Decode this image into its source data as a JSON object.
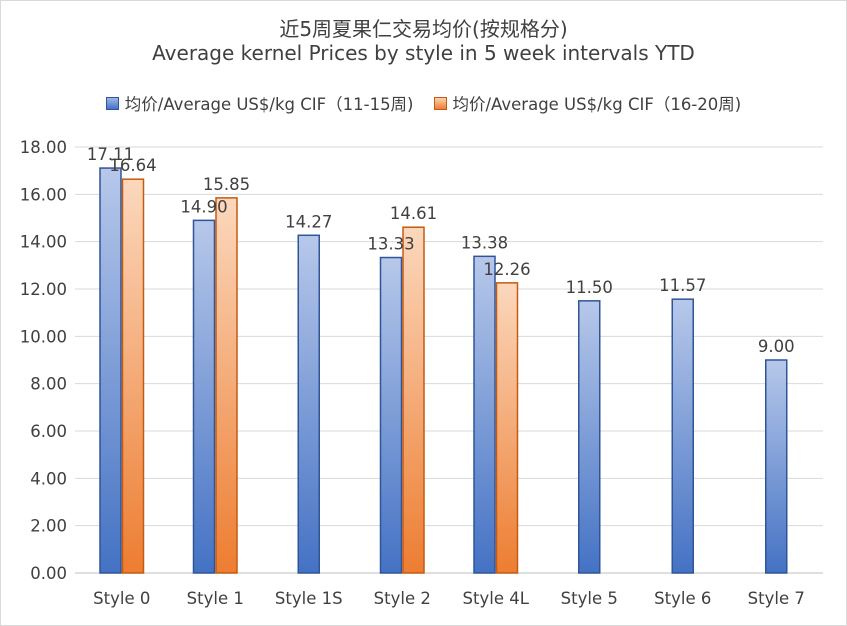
{
  "chart_data": {
    "type": "bar",
    "title": "近5周夏果仁交易均价(按规格分)",
    "subtitle": "Average kernel Prices by style in 5 week intervals YTD",
    "categories": [
      "Style 0",
      "Style 1",
      "Style 1S",
      "Style 2",
      "Style 4L",
      "Style 5",
      "Style 6",
      "Style 7"
    ],
    "series": [
      {
        "name": "均价/Average US$/kg CIF（11-15周)",
        "color": "#4472c4",
        "values": [
          17.11,
          14.9,
          14.27,
          13.33,
          13.38,
          11.5,
          11.57,
          9.0
        ]
      },
      {
        "name": "均价/Average US$/kg CIF（16-20周)",
        "color": "#ed7d31",
        "values": [
          16.64,
          15.85,
          null,
          14.61,
          12.26,
          null,
          null,
          null
        ]
      }
    ],
    "ylim": [
      0,
      18
    ],
    "yticks": [
      "0.00",
      "2.00",
      "4.00",
      "6.00",
      "8.00",
      "10.00",
      "12.00",
      "14.00",
      "16.00",
      "18.00"
    ],
    "xlabel": "",
    "ylabel": "",
    "grid": true,
    "legend_position": "top"
  }
}
